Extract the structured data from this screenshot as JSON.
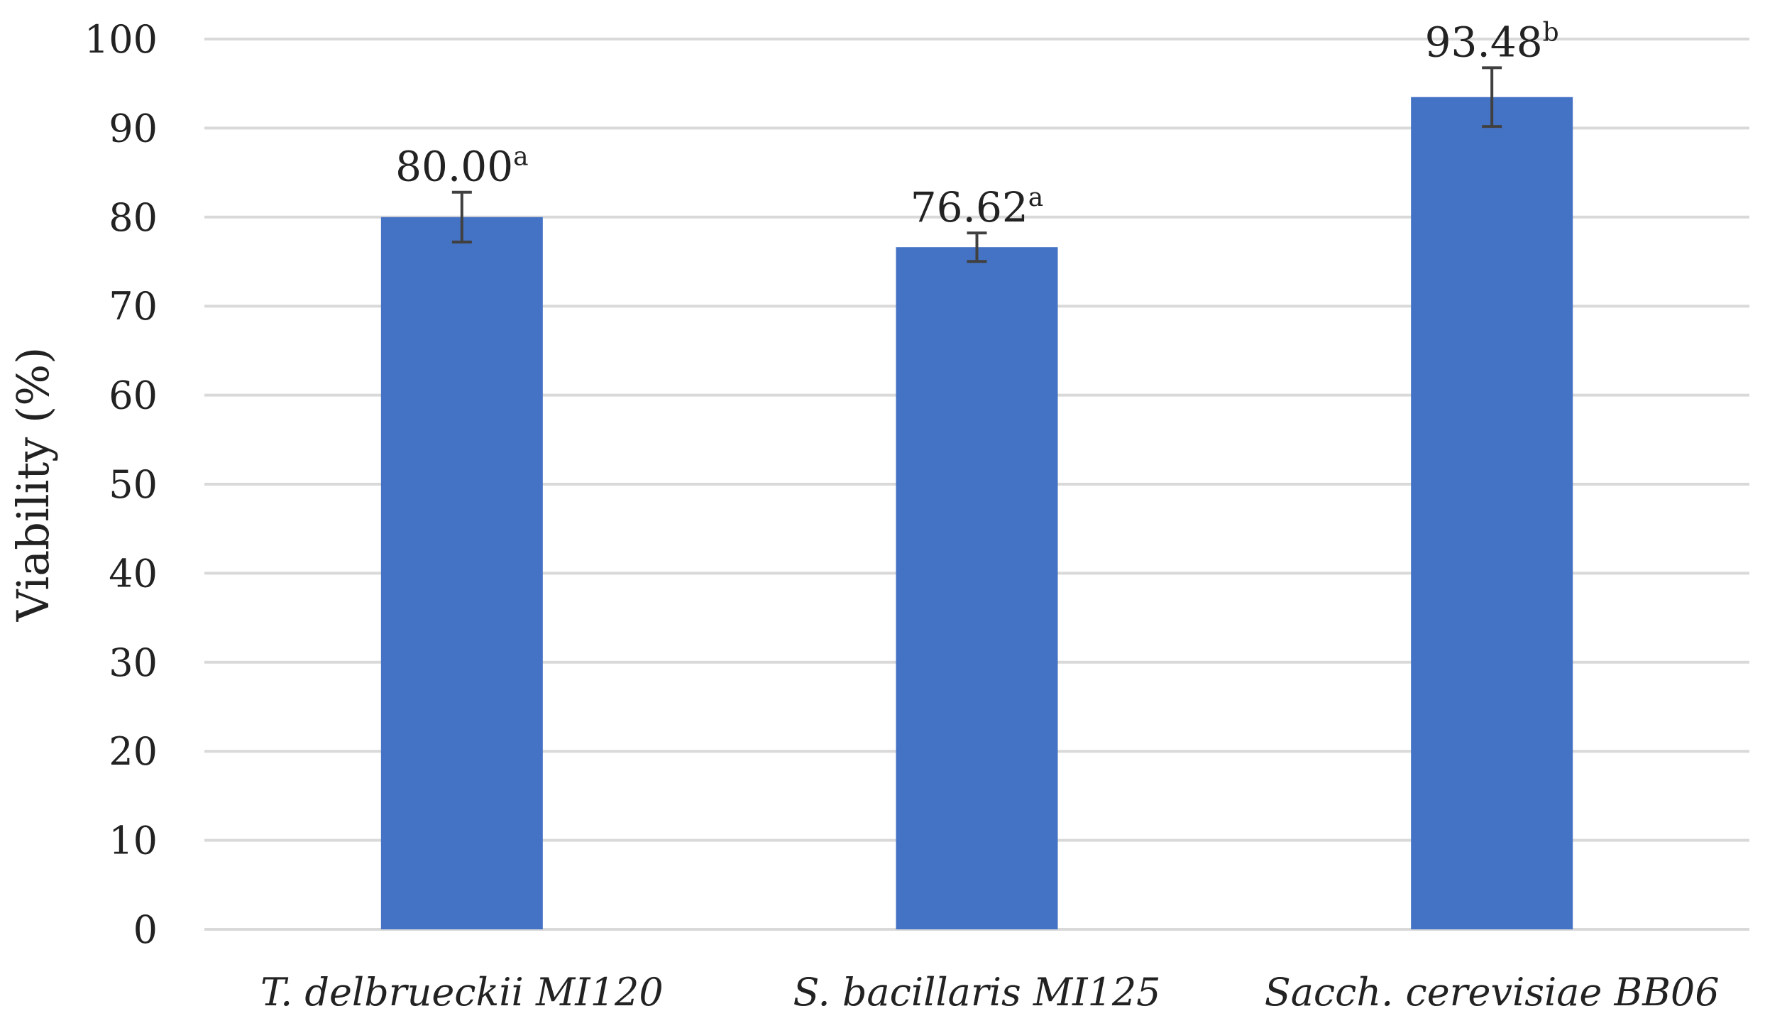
{
  "chart_data": {
    "type": "bar",
    "categories": [
      "T. delbrueckii MI120",
      "S. bacillaris MI125",
      "Sacch. cerevisiae BB06"
    ],
    "values": [
      80.0,
      76.62,
      93.48
    ],
    "errors": [
      2.8,
      1.6,
      3.3
    ],
    "data_labels": [
      "80.00",
      "76.62",
      "93.48"
    ],
    "significance": [
      "a",
      "a",
      "b"
    ],
    "ylabel": "Viability (%)",
    "xlabel": "",
    "title": "",
    "ylim": [
      0,
      100
    ],
    "yticks": [
      0,
      10,
      20,
      30,
      40,
      50,
      60,
      70,
      80,
      90,
      100
    ],
    "grid": "horizontal",
    "colors": {
      "bar": "#4472C4",
      "grid": "#D9D9D9",
      "error_bar": "#404040",
      "text": "#222222"
    }
  }
}
